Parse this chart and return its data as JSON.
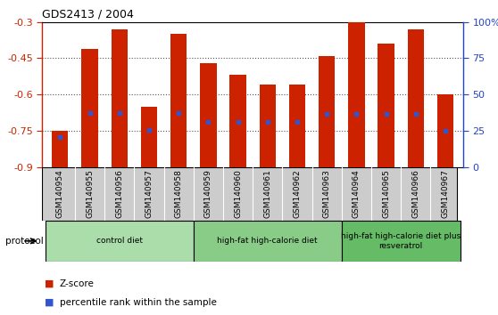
{
  "title": "GDS2413 / 2004",
  "samples": [
    "GSM140954",
    "GSM140955",
    "GSM140956",
    "GSM140957",
    "GSM140958",
    "GSM140959",
    "GSM140960",
    "GSM140961",
    "GSM140962",
    "GSM140963",
    "GSM140964",
    "GSM140965",
    "GSM140966",
    "GSM140967"
  ],
  "zscore": [
    -0.75,
    -0.41,
    -0.33,
    -0.65,
    -0.35,
    -0.47,
    -0.52,
    -0.56,
    -0.56,
    -0.44,
    -0.3,
    -0.39,
    -0.33,
    -0.6
  ],
  "pct_rank_zscore": [
    -0.775,
    -0.675,
    -0.675,
    -0.745,
    -0.675,
    -0.715,
    -0.715,
    -0.715,
    -0.715,
    -0.68,
    -0.68,
    -0.68,
    -0.68,
    -0.75
  ],
  "bar_bottom": -0.9,
  "bar_color": "#cc2200",
  "dot_color": "#3355cc",
  "ylim_left": [
    -0.9,
    -0.3
  ],
  "ylim_right": [
    0,
    100
  ],
  "yticks_left": [
    -0.9,
    -0.75,
    -0.6,
    -0.45,
    -0.3
  ],
  "ytick_labels_left": [
    "-0.9",
    "-0.75",
    "-0.6",
    "-0.45",
    "-0.3"
  ],
  "yticks_right_vals": [
    0,
    25,
    50,
    75,
    100
  ],
  "ytick_labels_right": [
    "0",
    "25",
    "50",
    "75",
    "100%"
  ],
  "grid_yticks": [
    -0.75,
    -0.6,
    -0.45
  ],
  "groups": [
    {
      "label": "control diet",
      "start": 0,
      "end": 4,
      "color": "#aaddaa"
    },
    {
      "label": "high-fat high-calorie diet",
      "start": 5,
      "end": 9,
      "color": "#88cc88"
    },
    {
      "label": "high-fat high-calorie diet plus\nresveratrol",
      "start": 10,
      "end": 13,
      "color": "#66bb66"
    }
  ],
  "protocol_label": "protocol",
  "legend_zscore": "Z-score",
  "legend_pct": "percentile rank within the sample",
  "bg_color": "#ffffff",
  "grid_color": "#555555",
  "label_bg_color": "#cccccc",
  "tick_color_left": "#cc2200",
  "tick_color_right": "#2244cc",
  "bar_width": 0.55
}
